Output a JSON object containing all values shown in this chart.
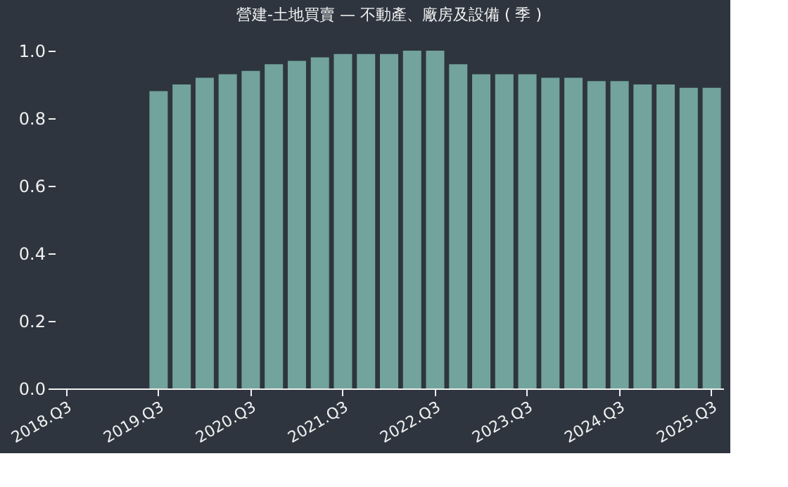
{
  "chart_data": {
    "type": "bar",
    "title": "營建-土地買賣 — 不動產、廠房及設備 ( 季 )",
    "categories": [
      "2018.Q3",
      null,
      null,
      null,
      "2019.Q3",
      null,
      null,
      null,
      "2020.Q3",
      null,
      null,
      null,
      "2021.Q3",
      null,
      null,
      null,
      "2022.Q3",
      null,
      null,
      null,
      "2023.Q3",
      null,
      null,
      null,
      "2024.Q3",
      null,
      null,
      null,
      "2025.Q3"
    ],
    "values": [
      null,
      null,
      null,
      null,
      0.88,
      0.9,
      0.92,
      0.93,
      0.94,
      0.96,
      0.97,
      0.98,
      0.99,
      0.99,
      0.99,
      1.0,
      1.0,
      0.96,
      0.93,
      0.93,
      0.93,
      0.92,
      0.92,
      0.91,
      0.91,
      0.9,
      0.9,
      0.89,
      0.89
    ],
    "color": "#72a39c",
    "ylim": [
      0,
      1.0
    ],
    "yticks": [
      {
        "value": 0,
        "label": "0.0"
      },
      {
        "value": 0.2,
        "label": "0.2"
      },
      {
        "value": 0.4,
        "label": "0.4"
      },
      {
        "value": 0.6,
        "label": "0.6"
      },
      {
        "value": 0.8,
        "label": "0.8"
      },
      {
        "value": 1.0,
        "label": "1.0"
      }
    ],
    "grid": false
  }
}
